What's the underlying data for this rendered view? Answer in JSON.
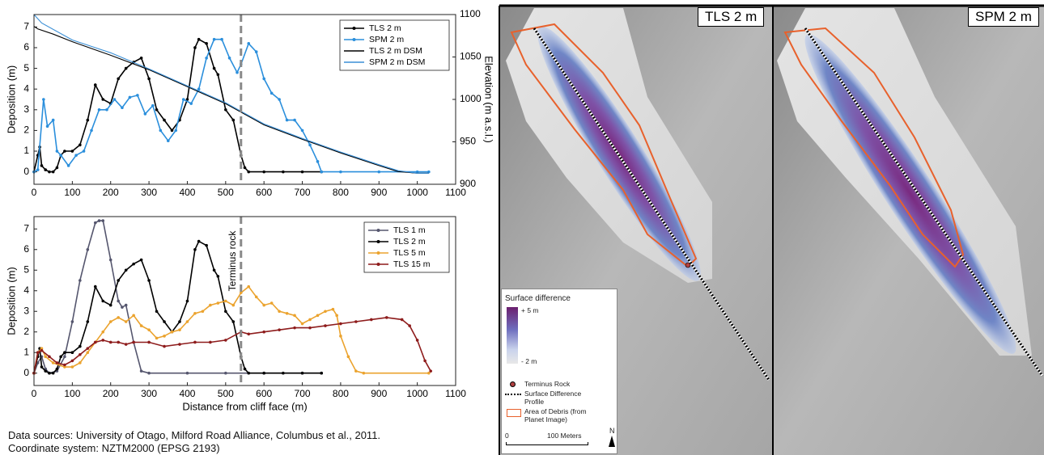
{
  "chart_data": [
    {
      "type": "line",
      "xlim": [
        0,
        1100
      ],
      "xticks": [
        0,
        100,
        200,
        300,
        400,
        500,
        600,
        700,
        800,
        900,
        1000,
        1100
      ],
      "ylim": [
        -0.6,
        7.6
      ],
      "yticks": [
        0,
        1,
        2,
        3,
        4,
        5,
        6,
        7
      ],
      "y2lim": [
        900,
        1100
      ],
      "y2ticks": [
        900,
        950,
        1000,
        1050,
        1100
      ],
      "ylabel": "Deposition (m)",
      "y2label": "Elevation (m a.s.l.)",
      "legend": "upper right",
      "vline": 540,
      "series": [
        {
          "name": "TLS 2 m",
          "color": "#000000",
          "markers": true,
          "x": [
            0,
            10,
            15,
            20,
            30,
            40,
            50,
            60,
            70,
            80,
            100,
            120,
            140,
            160,
            180,
            200,
            220,
            240,
            260,
            280,
            300,
            320,
            340,
            360,
            380,
            400,
            420,
            430,
            450,
            470,
            480,
            500,
            520,
            540,
            550,
            560,
            600,
            650,
            700,
            750
          ],
          "values": [
            0,
            0.8,
            1.2,
            0.3,
            0.1,
            0,
            0,
            0.2,
            0.8,
            1,
            1,
            1.3,
            2.5,
            4.2,
            3.5,
            3.3,
            4.5,
            5,
            5.3,
            5.5,
            4.5,
            3,
            2.5,
            2,
            2.5,
            3.5,
            6,
            6.4,
            6.2,
            5,
            4.7,
            3,
            2.5,
            0.8,
            0.2,
            0,
            0,
            0,
            0,
            0
          ]
        },
        {
          "name": "SPM 2 m",
          "color": "#2b8fdc",
          "markers": true,
          "x": [
            0,
            10,
            25,
            35,
            50,
            60,
            70,
            90,
            110,
            130,
            150,
            170,
            190,
            210,
            230,
            250,
            270,
            290,
            310,
            330,
            350,
            370,
            390,
            410,
            430,
            450,
            470,
            490,
            510,
            530,
            540,
            560,
            580,
            600,
            620,
            640,
            660,
            680,
            700,
            720,
            740,
            750,
            800,
            900,
            1000,
            1030
          ],
          "values": [
            0,
            0.1,
            3.5,
            2.2,
            2.5,
            1,
            0.8,
            0.3,
            0.8,
            1,
            2,
            3,
            3,
            3.5,
            3.1,
            3.6,
            3.7,
            2.8,
            3.2,
            2,
            1.5,
            2,
            3.5,
            3.3,
            4,
            5.5,
            6.4,
            6.4,
            5.5,
            4.8,
            5.2,
            6.2,
            5.8,
            4.5,
            3.8,
            3.5,
            2.5,
            2.5,
            2,
            1.3,
            0.5,
            0,
            0,
            0,
            0,
            0
          ]
        },
        {
          "name": "TLS 2 m DSM",
          "color": "#000000",
          "markers": false,
          "axis": "y2",
          "x": [
            0,
            10,
            50,
            100,
            200,
            300,
            400,
            500,
            540,
            600,
            700,
            800,
            900,
            950,
            1000,
            1030
          ],
          "values": [
            1086,
            1083,
            1077,
            1068,
            1052,
            1035,
            1015,
            995,
            985,
            970,
            953,
            937,
            922,
            915,
            913,
            913
          ]
        },
        {
          "name": "SPM 2 m DSM",
          "color": "#3a8fd6",
          "markers": false,
          "axis": "y2",
          "x": [
            0,
            20,
            100,
            200,
            300,
            400,
            500,
            540,
            600,
            700,
            800,
            900,
            950,
            1000,
            1030
          ],
          "values": [
            1100,
            1090,
            1070,
            1055,
            1036,
            1016,
            996,
            986,
            971,
            954,
            938,
            923,
            916,
            913,
            913
          ]
        }
      ]
    },
    {
      "type": "line",
      "xlim": [
        0,
        1100
      ],
      "xticks": [
        0,
        100,
        200,
        300,
        400,
        500,
        600,
        700,
        800,
        900,
        1000,
        1100
      ],
      "ylim": [
        -0.6,
        7.6
      ],
      "yticks": [
        0,
        1,
        2,
        3,
        4,
        5,
        6,
        7
      ],
      "xlabel": "Distance from cliff face (m)",
      "ylabel": "Deposition (m)",
      "legend": "upper right",
      "vline": 540,
      "annotation": "Terminus rock",
      "series": [
        {
          "name": "TLS 1 m",
          "color": "#55566e",
          "markers": true,
          "x": [
            0,
            10,
            20,
            30,
            40,
            60,
            80,
            100,
            120,
            140,
            160,
            170,
            180,
            200,
            220,
            230,
            240,
            260,
            280,
            300,
            400,
            500,
            600,
            700,
            750
          ],
          "values": [
            0,
            0.5,
            0.8,
            0.2,
            0,
            0.1,
            0.8,
            2.5,
            4.5,
            6,
            7.3,
            7.4,
            7.4,
            5.5,
            3.5,
            3.2,
            3.3,
            1.5,
            0.1,
            0,
            0,
            0,
            0,
            0,
            0
          ]
        },
        {
          "name": "TLS 2 m",
          "color": "#000000",
          "markers": true,
          "x": [
            0,
            10,
            15,
            20,
            30,
            40,
            50,
            60,
            70,
            80,
            100,
            120,
            140,
            160,
            180,
            200,
            220,
            240,
            260,
            280,
            300,
            320,
            340,
            360,
            380,
            400,
            420,
            430,
            450,
            470,
            480,
            500,
            520,
            540,
            550,
            560,
            600,
            650,
            700,
            750
          ],
          "values": [
            0,
            0.8,
            1.2,
            0.3,
            0.1,
            0,
            0,
            0.2,
            0.8,
            1,
            1,
            1.3,
            2.5,
            4.2,
            3.5,
            3.3,
            4.5,
            5,
            5.3,
            5.5,
            4.5,
            3,
            2.5,
            2,
            2.5,
            3.5,
            6,
            6.4,
            6.2,
            5,
            4.7,
            3,
            2.5,
            0.8,
            0.2,
            0,
            0,
            0,
            0,
            0
          ]
        },
        {
          "name": "TLS 5 m",
          "color": "#eba32e",
          "markers": true,
          "x": [
            0,
            10,
            20,
            30,
            50,
            80,
            100,
            120,
            140,
            160,
            180,
            200,
            220,
            240,
            260,
            280,
            300,
            320,
            340,
            360,
            380,
            400,
            420,
            440,
            460,
            480,
            500,
            520,
            540,
            560,
            580,
            600,
            620,
            640,
            660,
            680,
            700,
            720,
            740,
            760,
            780,
            790,
            800,
            820,
            840,
            860,
            1030
          ],
          "values": [
            0,
            1,
            1.2,
            0.8,
            0.5,
            0.3,
            0.3,
            0.5,
            1,
            1.5,
            2,
            2.5,
            2.7,
            2.5,
            2.8,
            2.3,
            2.1,
            1.7,
            1.8,
            2,
            2.1,
            2.5,
            2.9,
            3,
            3.3,
            3.4,
            3.5,
            3.3,
            3.9,
            4.2,
            3.7,
            3.3,
            3.4,
            3,
            2.9,
            2.8,
            2.4,
            2.6,
            2.8,
            3,
            3.1,
            2.8,
            1.8,
            0.8,
            0.1,
            0,
            0
          ]
        },
        {
          "name": "TLS 15 m",
          "color": "#8e1c1c",
          "markers": true,
          "x": [
            0,
            10,
            20,
            40,
            60,
            80,
            100,
            120,
            140,
            160,
            180,
            200,
            220,
            240,
            260,
            300,
            340,
            380,
            420,
            460,
            500,
            540,
            560,
            600,
            640,
            680,
            720,
            760,
            800,
            840,
            880,
            920,
            960,
            980,
            1000,
            1020,
            1035
          ],
          "values": [
            0,
            1,
            1.1,
            0.8,
            0.5,
            0.4,
            0.6,
            0.9,
            1.2,
            1.5,
            1.6,
            1.5,
            1.5,
            1.4,
            1.5,
            1.5,
            1.3,
            1.4,
            1.5,
            1.5,
            1.6,
            2,
            1.9,
            2,
            2.1,
            2.2,
            2.2,
            2.3,
            2.4,
            2.5,
            2.6,
            2.7,
            2.6,
            2.3,
            1.6,
            0.6,
            0.1
          ]
        }
      ]
    }
  ],
  "footer": [
    "Data sources: University of Otago, Milford Road Alliance, Columbus et al., 2011.",
    "Coordinate system: NZTM2000 (EPSG 2193)"
  ],
  "maps": {
    "panels": [
      "TLS 2 m",
      "SPM 2 m"
    ],
    "legend": {
      "title": "Surface difference",
      "max": "+ 5 m",
      "min": "- 2 m",
      "items": [
        "Terminus Rock",
        "Surface Difference Profile",
        "Area of Debris (from Planet Image)"
      ]
    },
    "scale_start": "0",
    "scale_end": "100 Meters",
    "north": "N"
  }
}
